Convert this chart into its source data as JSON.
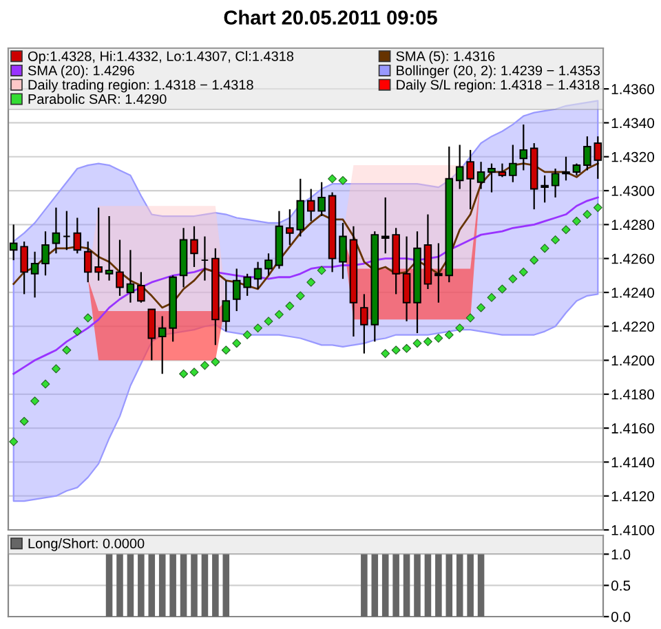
{
  "chart_data": [
    {
      "type": "candlestick",
      "title": "Chart 20.05.2011 09:05",
      "categories": [
        null,
        null,
        null,
        null,
        null,
        null,
        null,
        null,
        null,
        null,
        null,
        null,
        null,
        null,
        null,
        null,
        null,
        null,
        null,
        null,
        null,
        null,
        null,
        null,
        null,
        null,
        null,
        null,
        null,
        null,
        null,
        null,
        null,
        null,
        null,
        null,
        null,
        null,
        null,
        null,
        null,
        null,
        null,
        null,
        null,
        null,
        null,
        null,
        null,
        null,
        null,
        null,
        null,
        null,
        null,
        null
      ],
      "ylim": [
        1.41,
        1.4384
      ],
      "yticks": [
        {
          "value": 1.41,
          "label": "1.4100"
        },
        {
          "value": 1.412,
          "label": "1.4120"
        },
        {
          "value": 1.414,
          "label": "1.4140"
        },
        {
          "value": 1.416,
          "label": "1.4160"
        },
        {
          "value": 1.418,
          "label": "1.4180"
        },
        {
          "value": 1.42,
          "label": "1.4200"
        },
        {
          "value": 1.422,
          "label": "1.4220"
        },
        {
          "value": 1.424,
          "label": "1.4240"
        },
        {
          "value": 1.426,
          "label": "1.4260"
        },
        {
          "value": 1.428,
          "label": "1.4280"
        },
        {
          "value": 1.43,
          "label": "1.4300"
        },
        {
          "value": 1.432,
          "label": "1.4320"
        },
        {
          "value": 1.434,
          "label": "1.4340"
        },
        {
          "value": 1.436,
          "label": "1.4360"
        }
      ],
      "grid": "y",
      "legend": "top",
      "tick_labels": "y",
      "series": [
        {
          "type": "area",
          "name": "Bollinger (20, 2): 1.4239 − 1.4353",
          "color": "#9999ff",
          "line_style": "solid",
          "values": [
            null,
            null,
            null,
            null,
            null,
            null,
            null,
            null,
            null,
            null,
            null,
            null,
            null,
            null,
            null,
            null,
            null,
            null,
            null,
            null,
            null,
            null,
            null,
            null,
            null,
            null,
            null,
            null,
            null,
            null,
            null,
            null,
            null,
            null,
            null,
            null,
            null,
            null,
            null,
            null,
            null,
            null,
            null,
            null,
            null,
            null,
            null,
            null,
            null,
            null,
            null,
            null,
            null,
            null,
            null,
            null
          ],
          "upper": [
            1.427,
            1.4275,
            1.4281,
            1.4289,
            1.4297,
            1.4305,
            1.4313,
            1.4315,
            1.4316,
            1.4315,
            1.4312,
            1.4309,
            1.4297,
            1.4286,
            1.4285,
            1.4285,
            1.4285,
            1.4285,
            1.4286,
            1.4287,
            1.4286,
            1.4284,
            1.4283,
            1.4282,
            1.4281,
            1.4281,
            1.4284,
            1.4292,
            1.4296,
            1.4301,
            1.4304,
            1.4304,
            1.4304,
            1.4304,
            1.4304,
            1.4304,
            1.4304,
            1.4304,
            1.4304,
            1.4303,
            1.4302,
            1.4306,
            1.4312,
            1.432,
            1.4328,
            1.4332,
            1.4335,
            1.4339,
            1.4344,
            1.4346,
            1.4347,
            1.4348,
            1.435,
            1.4351,
            1.4352,
            1.4353
          ],
          "lower": [
            1.4117,
            1.4117,
            1.4118,
            1.4119,
            1.412,
            1.4123,
            1.4125,
            1.4131,
            1.4139,
            1.4154,
            1.4167,
            1.4185,
            1.4198,
            1.4211,
            1.4215,
            1.4216,
            1.4217,
            1.4218,
            1.422,
            1.4221,
            1.4217,
            1.4216,
            1.4215,
            1.4215,
            1.4215,
            1.4215,
            1.4214,
            1.4213,
            1.4211,
            1.4209,
            1.4209,
            1.4208,
            1.4209,
            1.421,
            1.4212,
            1.4213,
            1.4215,
            1.4215,
            1.4215,
            1.4215,
            1.4216,
            1.4217,
            1.4218,
            1.4218,
            1.4217,
            1.4216,
            1.4215,
            1.4215,
            1.4215,
            1.4215,
            1.4217,
            1.422,
            1.4228,
            1.4235,
            1.4238,
            1.4239
          ]
        },
        {
          "type": "area",
          "name": "Daily trading region: 1.4318 − 1.4318",
          "color": "#ffc8c8",
          "values": [
            null,
            null,
            null,
            null,
            null,
            null,
            null,
            null,
            null,
            null,
            null,
            null,
            null,
            null,
            null,
            null,
            null,
            null,
            null,
            null,
            null,
            null,
            null,
            null,
            null,
            null,
            null,
            null,
            null,
            null,
            null,
            null,
            null,
            null,
            null,
            null,
            null,
            null,
            null,
            null,
            null,
            null,
            null,
            null,
            null,
            null,
            null,
            null,
            null,
            null,
            null,
            null,
            null,
            null,
            null,
            null
          ],
          "upper": [
            null,
            null,
            null,
            null,
            null,
            null,
            null,
            1.4248,
            1.4291,
            1.4291,
            1.4291,
            1.4291,
            1.4291,
            1.4291,
            1.4291,
            1.4291,
            1.4291,
            1.4291,
            1.4291,
            1.4291,
            1.4235,
            null,
            null,
            null,
            null,
            null,
            null,
            null,
            null,
            null,
            null,
            1.4273,
            1.4315,
            1.4315,
            1.4315,
            1.4315,
            1.4315,
            1.4315,
            1.4315,
            1.4315,
            1.4315,
            1.4315,
            1.4315,
            1.4315,
            1.4311,
            null,
            null,
            null,
            null,
            null,
            null,
            null,
            null,
            null,
            null,
            null
          ],
          "lower": [
            null,
            null,
            null,
            null,
            null,
            null,
            null,
            1.4248,
            1.42,
            1.42,
            1.42,
            1.42,
            1.42,
            1.42,
            1.42,
            1.42,
            1.42,
            1.42,
            1.42,
            1.42,
            1.4235,
            null,
            null,
            null,
            null,
            null,
            null,
            null,
            null,
            null,
            null,
            1.4273,
            1.4224,
            1.4224,
            1.4224,
            1.4224,
            1.4224,
            1.4224,
            1.4224,
            1.4224,
            1.4224,
            1.4224,
            1.4224,
            1.4224,
            1.4311,
            null,
            null,
            null,
            null,
            null,
            null,
            null,
            null,
            null,
            null,
            null
          ]
        },
        {
          "type": "area",
          "name": "Daily S/L region: 1.4318 − 1.4318",
          "color": "#ff0000",
          "values": [
            null,
            null,
            null,
            null,
            null,
            null,
            null,
            null,
            null,
            null,
            null,
            null,
            null,
            null,
            null,
            null,
            null,
            null,
            null,
            null,
            null,
            null,
            null,
            null,
            null,
            null,
            null,
            null,
            null,
            null,
            null,
            null,
            null,
            null,
            null,
            null,
            null,
            null,
            null,
            null,
            null,
            null,
            null,
            null,
            null,
            null,
            null,
            null,
            null,
            null,
            null,
            null,
            null,
            null,
            null,
            null
          ],
          "upper": [
            null,
            null,
            null,
            null,
            null,
            null,
            null,
            1.4248,
            1.4229,
            1.4229,
            1.4229,
            1.4229,
            1.4229,
            1.4229,
            1.4229,
            1.4229,
            1.4229,
            1.4229,
            1.4229,
            1.4229,
            1.4235,
            null,
            null,
            null,
            null,
            null,
            null,
            null,
            null,
            null,
            null,
            1.4273,
            1.4254,
            1.4254,
            1.4254,
            1.4254,
            1.4254,
            1.4254,
            1.4254,
            1.4254,
            1.4254,
            1.4254,
            1.4254,
            1.4254,
            1.4311,
            null,
            null,
            null,
            null,
            null,
            null,
            null,
            null,
            null,
            null,
            null
          ],
          "lower": [
            null,
            null,
            null,
            null,
            null,
            null,
            null,
            1.4248,
            1.42,
            1.42,
            1.42,
            1.42,
            1.42,
            1.42,
            1.42,
            1.42,
            1.42,
            1.42,
            1.42,
            1.42,
            1.4235,
            null,
            null,
            null,
            null,
            null,
            null,
            null,
            null,
            null,
            null,
            1.4273,
            1.4224,
            1.4224,
            1.4224,
            1.4224,
            1.4224,
            1.4224,
            1.4224,
            1.4224,
            1.4224,
            1.4224,
            1.4224,
            1.4224,
            1.4311,
            null,
            null,
            null,
            null,
            null,
            null,
            null,
            null,
            null,
            null,
            null
          ]
        },
        {
          "type": "line",
          "name": "SMA (20): 1.4296",
          "color": "#9933ff",
          "values": [
            1.4192,
            1.4196,
            1.42,
            1.4203,
            1.4206,
            1.4211,
            1.4215,
            1.4219,
            1.4224,
            1.4231,
            1.4236,
            1.424,
            1.4243,
            1.4246,
            1.4248,
            1.425,
            1.4251,
            1.4252,
            1.4254,
            1.4252,
            1.4251,
            1.425,
            1.4249,
            1.4249,
            1.4248,
            1.4249,
            1.4249,
            1.4251,
            1.4254,
            1.4255,
            1.4255,
            1.4256,
            1.4256,
            1.4257,
            1.4259,
            1.426,
            1.426,
            1.426,
            1.4259,
            1.426,
            1.4261,
            1.4265,
            1.4268,
            1.4271,
            1.4274,
            1.4275,
            1.4276,
            1.4278,
            1.4279,
            1.428,
            1.4282,
            1.4284,
            1.4286,
            1.4291,
            1.4294,
            1.4296
          ]
        },
        {
          "type": "line",
          "name": "SMA (5): 1.4316",
          "color": "#663300",
          "values": [
            1.4245,
            1.4252,
            1.4255,
            1.4261,
            1.4266,
            1.4266,
            1.4267,
            1.4266,
            1.4261,
            1.4258,
            1.4252,
            1.4247,
            1.4244,
            1.4238,
            1.4231,
            1.4234,
            1.4242,
            1.4247,
            1.4254,
            1.4252,
            1.4247,
            1.4246,
            1.4244,
            1.4242,
            1.425,
            1.4259,
            1.4267,
            1.4275,
            1.4281,
            1.4286,
            1.4283,
            1.4283,
            1.4273,
            1.4258,
            1.4253,
            1.4255,
            1.4251,
            1.4252,
            1.4259,
            1.4255,
            1.4251,
            1.4261,
            1.4277,
            1.4286,
            1.4304,
            1.4311,
            1.4311,
            1.4315,
            1.4316,
            1.4315,
            1.4311,
            1.4311,
            1.4311,
            1.4308,
            1.4313,
            1.4316
          ]
        },
        {
          "type": "scatter",
          "name": "Parabolic SAR: 1.4290",
          "color": "#33dd33",
          "marker": "diamond",
          "values": [
            1.4152,
            1.4164,
            1.4176,
            1.4186,
            1.4195,
            1.4206,
            1.4217,
            1.4225,
            null,
            null,
            null,
            null,
            null,
            null,
            null,
            null,
            1.4192,
            1.4193,
            1.4197,
            1.4199,
            1.4206,
            1.421,
            1.4215,
            1.4219,
            1.4223,
            1.4227,
            1.4232,
            1.4238,
            1.4246,
            1.4253,
            1.4307,
            1.4306,
            null,
            null,
            null,
            1.4204,
            1.4206,
            1.4207,
            1.421,
            1.4211,
            1.4213,
            1.4215,
            1.4219,
            1.4225,
            1.4231,
            1.4237,
            1.4242,
            1.4248,
            1.4252,
            1.4259,
            1.4266,
            1.4271,
            1.4277,
            1.4282,
            1.4286,
            1.429
          ]
        },
        {
          "type": "candlestick",
          "name": "Op:1.4328, Hi:1.4332, Lo:1.4307, Cl:1.4318",
          "color": "#cc0000",
          "colors": [
            "#008000",
            "#cc0000",
            "#008000",
            "#008000",
            "#008000",
            "#000000",
            "#cc0000",
            "#cc0000",
            "#cc0000",
            "#008000",
            "#cc0000",
            "#008000",
            "#cc0000",
            "#cc0000",
            "#008000",
            "#008000",
            "#008000",
            "#cc0000",
            "#000000",
            "#cc0000",
            "#008000",
            "#008000",
            "#008000",
            "#008000",
            "#008000",
            "#008000",
            "#cc0000",
            "#008000",
            "#cc0000",
            "#008000",
            "#cc0000",
            "#008000",
            "#cc0000",
            "#cc0000",
            "#008000",
            "#000000",
            "#cc0000",
            "#cc0000",
            "#008000",
            "#cc0000",
            "#000000",
            "#008000",
            "#008000",
            "#cc0000",
            "#008000",
            "#008000",
            "#cc0000",
            "#008000",
            "#008000",
            "#cc0000",
            "#000000",
            "#008000",
            "#000000",
            "#008000",
            "#008000",
            "#cc0000"
          ],
          "ohlc": [
            [
              1.4265,
              1.428,
              1.4259,
              1.4269
            ],
            [
              1.4267,
              1.427,
              1.4239,
              1.4252
            ],
            [
              1.4251,
              1.4264,
              1.4237,
              1.4257
            ],
            [
              1.4257,
              1.4276,
              1.425,
              1.4268
            ],
            [
              1.4269,
              1.429,
              1.4263,
              1.4275
            ],
            [
              1.4273,
              1.4288,
              1.4265,
              1.4273
            ],
            [
              1.4275,
              1.4284,
              1.4263,
              1.4265
            ],
            [
              1.4264,
              1.427,
              1.4246,
              1.4252
            ],
            [
              1.4255,
              1.429,
              1.4247,
              1.4252
            ],
            [
              1.4251,
              1.4285,
              1.4247,
              1.4253
            ],
            [
              1.4252,
              1.4271,
              1.4238,
              1.4243
            ],
            [
              1.424,
              1.4265,
              1.4234,
              1.4245
            ],
            [
              1.4244,
              1.4252,
              1.4234,
              1.4235
            ],
            [
              1.423,
              1.423,
              1.42,
              1.4213
            ],
            [
              1.4214,
              1.4226,
              1.4192,
              1.4219
            ],
            [
              1.4219,
              1.425,
              1.4211,
              1.4249
            ],
            [
              1.425,
              1.4278,
              1.4243,
              1.4271
            ],
            [
              1.4271,
              1.4279,
              1.4255,
              1.4263
            ],
            [
              1.4259,
              1.4273,
              1.4247,
              1.4259
            ],
            [
              1.426,
              1.4266,
              1.4209,
              1.4224
            ],
            [
              1.4223,
              1.4247,
              1.4217,
              1.4235
            ],
            [
              1.4236,
              1.4254,
              1.4229,
              1.4247
            ],
            [
              1.4243,
              1.4251,
              1.4238,
              1.4249
            ],
            [
              1.4248,
              1.4258,
              1.4242,
              1.4254
            ],
            [
              1.4254,
              1.4263,
              1.425,
              1.4259
            ],
            [
              1.4256,
              1.4288,
              1.4254,
              1.4279
            ],
            [
              1.4278,
              1.4289,
              1.4268,
              1.4275
            ],
            [
              1.4277,
              1.4307,
              1.4273,
              1.4294
            ],
            [
              1.4294,
              1.4301,
              1.4282,
              1.4288
            ],
            [
              1.4288,
              1.4305,
              1.4285,
              1.4296
            ],
            [
              1.4297,
              1.4299,
              1.4252,
              1.426
            ],
            [
              1.4258,
              1.4281,
              1.4248,
              1.4273
            ],
            [
              1.4271,
              1.4279,
              1.4214,
              1.4234
            ],
            [
              1.4231,
              1.4239,
              1.4204,
              1.4221
            ],
            [
              1.4221,
              1.4276,
              1.4211,
              1.4274
            ],
            [
              1.4272,
              1.4296,
              1.4263,
              1.4273
            ],
            [
              1.4274,
              1.4278,
              1.4239,
              1.4251
            ],
            [
              1.4251,
              1.4273,
              1.4223,
              1.4234
            ],
            [
              1.4234,
              1.4276,
              1.4216,
              1.4266
            ],
            [
              1.4268,
              1.4286,
              1.4242,
              1.4245
            ],
            [
              1.4251,
              1.4269,
              1.4234,
              1.425
            ],
            [
              1.425,
              1.4326,
              1.4246,
              1.4307
            ],
            [
              1.4306,
              1.4327,
              1.4301,
              1.4314
            ],
            [
              1.4317,
              1.4324,
              1.4289,
              1.4307
            ],
            [
              1.4305,
              1.4317,
              1.4301,
              1.4311
            ],
            [
              1.4311,
              1.4316,
              1.4299,
              1.4313
            ],
            [
              1.4311,
              1.4316,
              1.4308,
              1.4309
            ],
            [
              1.4309,
              1.4327,
              1.4305,
              1.4316
            ],
            [
              1.4319,
              1.4339,
              1.4312,
              1.4324
            ],
            [
              1.4325,
              1.4328,
              1.4289,
              1.4301
            ],
            [
              1.4303,
              1.4309,
              1.4293,
              1.4302
            ],
            [
              1.4303,
              1.4313,
              1.4296,
              1.431
            ],
            [
              1.4311,
              1.432,
              1.4306,
              1.431
            ],
            [
              1.4311,
              1.4316,
              1.4309,
              1.4315
            ],
            [
              1.4315,
              1.4332,
              1.4312,
              1.4326
            ],
            [
              1.4328,
              1.4332,
              1.4307,
              1.4318
            ]
          ]
        }
      ]
    },
    {
      "type": "bar",
      "categories": [
        null,
        null,
        null,
        null,
        null,
        null,
        null,
        null,
        null,
        null,
        null,
        null,
        null,
        null,
        null,
        null,
        null,
        null,
        null,
        null,
        null,
        null,
        null,
        null,
        null,
        null,
        null,
        null,
        null,
        null,
        null,
        null,
        null,
        null,
        null,
        null,
        null,
        null,
        null,
        null,
        null,
        null,
        null,
        null,
        null,
        null,
        null,
        null,
        null,
        null,
        null,
        null,
        null,
        null,
        null,
        null
      ],
      "ylim": [
        0,
        1.3
      ],
      "yticks": [
        {
          "value": 0,
          "label": "0.0"
        },
        {
          "value": 0.5,
          "label": "0.5"
        },
        {
          "value": 1,
          "label": "1.0"
        }
      ],
      "grid": "y",
      "legend": "top",
      "tick_labels": "y",
      "series": [
        {
          "type": "bar",
          "name": "Long/Short: 0.0000",
          "color": "#666666",
          "values": [
            0,
            0,
            0,
            0,
            0,
            0,
            0,
            0,
            0,
            1,
            1,
            1,
            1,
            1,
            1,
            1,
            1,
            1,
            1,
            1,
            1,
            0,
            0,
            0,
            0,
            0,
            0,
            0,
            0,
            0,
            0,
            0,
            0,
            1,
            1,
            1,
            1,
            1,
            1,
            1,
            1,
            1,
            1,
            1,
            1,
            0,
            0,
            0,
            0,
            0,
            0,
            0,
            0,
            0,
            0,
            0
          ]
        }
      ]
    }
  ]
}
